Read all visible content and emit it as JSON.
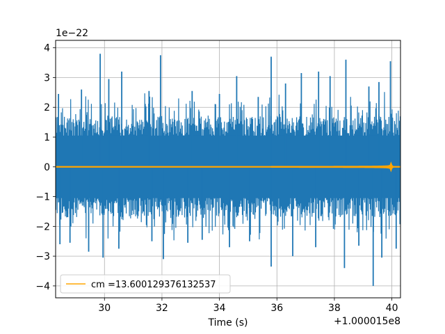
{
  "chart_data": {
    "type": "line",
    "xlabel": "Time (s)",
    "ylabel": "",
    "x_offset_label": "+1.000015e8",
    "y_scale_label": "1e−22",
    "xlim": [
      28.3,
      40.3
    ],
    "ylim": [
      -4.4,
      4.25
    ],
    "x_ticks": [
      30,
      32,
      34,
      36,
      38,
      40
    ],
    "x_tick_labels": [
      "30",
      "32",
      "34",
      "36",
      "38",
      "40"
    ],
    "y_ticks": [
      -4,
      -3,
      -2,
      -1,
      0,
      1,
      2,
      3,
      4
    ],
    "y_tick_labels": [
      "−4",
      "−3",
      "−2",
      "−1",
      "0",
      "1",
      "2",
      "3",
      "4"
    ],
    "grid": true,
    "legend_position": "lower-left",
    "series": [
      {
        "name": "",
        "color": "#1f77b4",
        "style": "noisy strain, dense",
        "typical_envelope": [
          -1.7,
          1.7
        ],
        "max_peak": 3.8,
        "min_peak": -4.0,
        "positive_spikes": [
          {
            "x": 28.4,
            "y": 2.45
          },
          {
            "x": 29.2,
            "y": 2.6
          },
          {
            "x": 29.85,
            "y": 3.8
          },
          {
            "x": 30.15,
            "y": 2.95
          },
          {
            "x": 30.6,
            "y": 3.2
          },
          {
            "x": 31.55,
            "y": 2.55
          },
          {
            "x": 31.95,
            "y": 3.75
          },
          {
            "x": 33.05,
            "y": 2.55
          },
          {
            "x": 34.0,
            "y": 2.45
          },
          {
            "x": 34.6,
            "y": 3.05
          },
          {
            "x": 35.35,
            "y": 2.35
          },
          {
            "x": 35.8,
            "y": 3.7
          },
          {
            "x": 36.3,
            "y": 2.8
          },
          {
            "x": 36.85,
            "y": 3.15
          },
          {
            "x": 37.45,
            "y": 3.2
          },
          {
            "x": 37.85,
            "y": 3.05
          },
          {
            "x": 38.4,
            "y": 3.6
          },
          {
            "x": 39.2,
            "y": 2.7
          },
          {
            "x": 39.55,
            "y": 2.85
          },
          {
            "x": 39.95,
            "y": 3.55
          }
        ],
        "negative_spikes": [
          {
            "x": 28.45,
            "y": -2.6
          },
          {
            "x": 28.8,
            "y": -2.55
          },
          {
            "x": 29.45,
            "y": -2.85
          },
          {
            "x": 29.95,
            "y": -3.05
          },
          {
            "x": 30.5,
            "y": -2.75
          },
          {
            "x": 31.65,
            "y": -2.5
          },
          {
            "x": 32.05,
            "y": -3.1
          },
          {
            "x": 32.9,
            "y": -2.55
          },
          {
            "x": 33.4,
            "y": -2.45
          },
          {
            "x": 34.35,
            "y": -2.7
          },
          {
            "x": 35.05,
            "y": -2.5
          },
          {
            "x": 35.8,
            "y": -3.35
          },
          {
            "x": 36.55,
            "y": -3.0
          },
          {
            "x": 37.35,
            "y": -2.7
          },
          {
            "x": 38.35,
            "y": -3.4
          },
          {
            "x": 38.85,
            "y": -2.65
          },
          {
            "x": 39.35,
            "y": -4.0
          },
          {
            "x": 39.65,
            "y": -3.05
          },
          {
            "x": 40.15,
            "y": -2.75
          }
        ]
      },
      {
        "name": "cm =13.600129376132537",
        "color": "#ffa500",
        "style": "chirp",
        "chirp_start": 35.8,
        "merger_time": 39.95,
        "peak_amplitude": 0.25
      }
    ]
  }
}
